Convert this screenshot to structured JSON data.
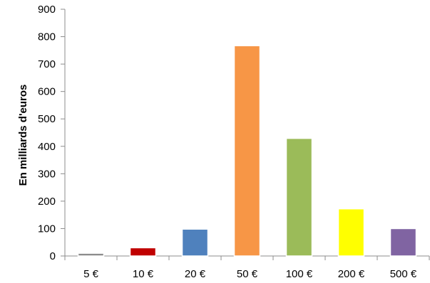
{
  "chart_data": {
    "type": "bar",
    "title": "",
    "xlabel": "",
    "ylabel": "En milliards d'euros",
    "categories": [
      "5 €",
      "10 €",
      "20 €",
      "50 €",
      "100 €",
      "200 €",
      "500 €"
    ],
    "values": [
      10,
      30,
      98,
      767,
      429,
      172,
      100
    ],
    "colors": [
      "#8c8c8c",
      "#c00000",
      "#4f81bd",
      "#f79646",
      "#9bbb59",
      "#ffff00",
      "#8064a2"
    ],
    "ylim": [
      0,
      900
    ],
    "yticks": [
      0,
      100,
      200,
      300,
      400,
      500,
      600,
      700,
      800,
      900
    ],
    "grid": false,
    "legend": "none"
  }
}
